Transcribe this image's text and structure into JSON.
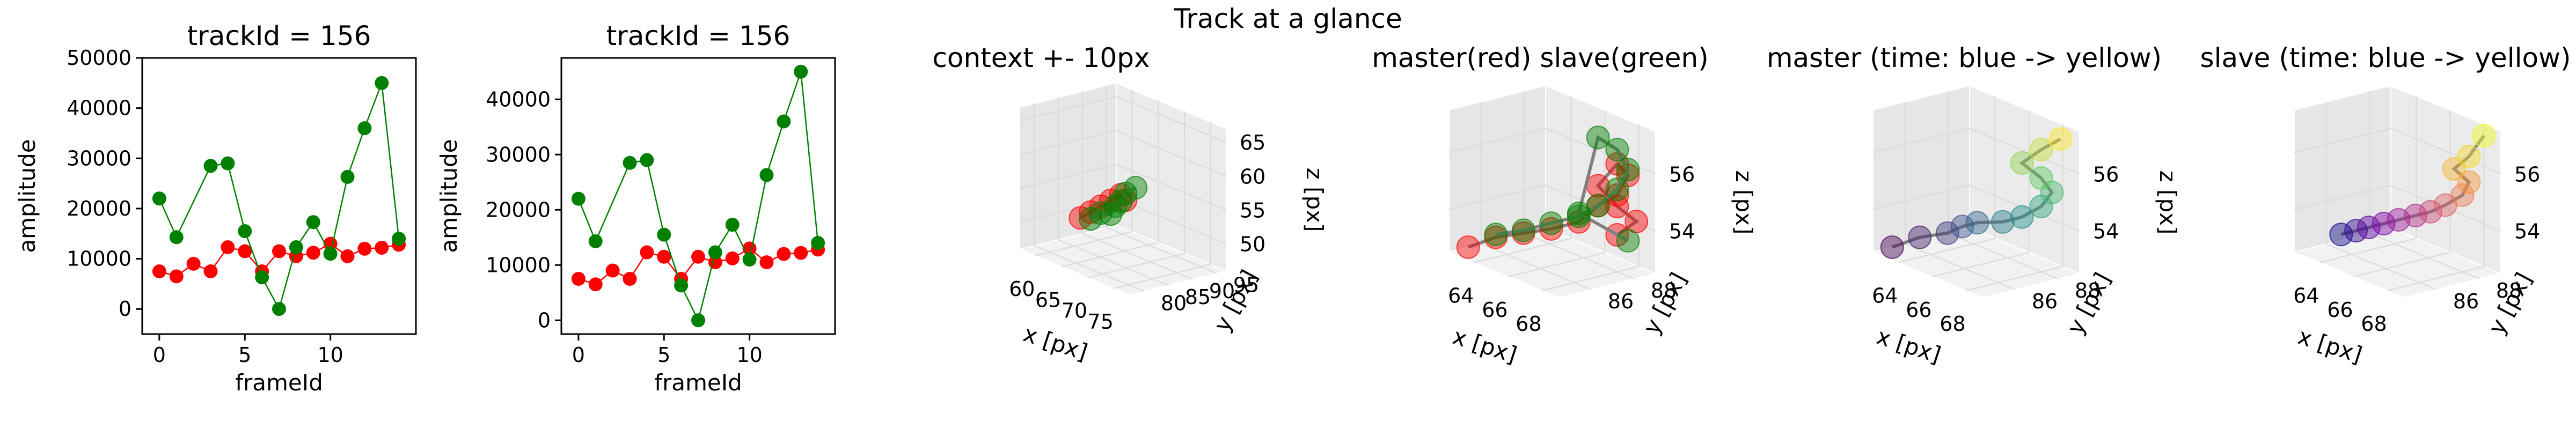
{
  "figure": {
    "suptitle": "Track at a glance"
  },
  "colors": {
    "red": "#ff0000",
    "green": "#008000",
    "gray_line": "#808080",
    "pane": "#f2f2f2",
    "grid": "#d9d9d9"
  },
  "chart_data": [
    {
      "type": "line",
      "title": "trackId = 156",
      "xlabel": "frameId",
      "ylabel": "amplitude",
      "xlim": [
        -1,
        15
      ],
      "ylim": [
        -5000,
        50000
      ],
      "xticks": [
        "0",
        "5",
        "10"
      ],
      "yticks": [
        "0",
        "10000",
        "20000",
        "30000",
        "40000",
        "50000"
      ],
      "x": [
        0,
        1,
        2,
        3,
        4,
        5,
        6,
        7,
        8,
        9,
        10,
        11,
        12,
        13,
        14
      ],
      "series": [
        {
          "color": "red",
          "values": [
            7500,
            6500,
            9000,
            7500,
            12300,
            11500,
            7500,
            11500,
            10500,
            11200,
            13000,
            10500,
            12000,
            12200,
            12800
          ]
        },
        {
          "color": "green",
          "values": [
            22000,
            14300,
            null,
            28500,
            29000,
            15500,
            6300,
            0,
            12300,
            17300,
            11000,
            26300,
            36000,
            45000,
            14000
          ]
        }
      ]
    },
    {
      "type": "line",
      "title": "trackId = 156",
      "xlabel": "frameId",
      "ylabel": "amplitude",
      "xlim": [
        -1,
        15
      ],
      "ylim": [
        -2500,
        47500
      ],
      "xticks": [
        "0",
        "5",
        "10"
      ],
      "yticks": [
        "0",
        "10000",
        "20000",
        "30000",
        "40000"
      ],
      "x": [
        0,
        1,
        2,
        3,
        4,
        5,
        6,
        7,
        8,
        9,
        10,
        11,
        12,
        13,
        14
      ],
      "series": [
        {
          "color": "red",
          "values": [
            7500,
            6500,
            9000,
            7500,
            12300,
            11500,
            7500,
            11500,
            10500,
            11200,
            13000,
            10500,
            12000,
            12200,
            12800
          ]
        },
        {
          "color": "green",
          "values": [
            22000,
            14300,
            null,
            28500,
            29000,
            15500,
            6300,
            0,
            12300,
            17300,
            11000,
            26300,
            36000,
            45000,
            14000
          ]
        }
      ]
    },
    {
      "type": "scatter",
      "title": "context +- 10px",
      "xlabel": "x [px]",
      "ylabel": "y [px]",
      "zlabel": "z [px]",
      "xticks": [
        "60",
        "65",
        "70",
        "75"
      ],
      "yticks": [
        "80",
        "85",
        "90",
        "95"
      ],
      "zticks": [
        "50",
        "55",
        "60",
        "65"
      ],
      "xlim": [
        57,
        78
      ],
      "ylim": [
        77,
        97
      ],
      "zlim": [
        46,
        67
      ],
      "red_points": {
        "x": [
          64,
          65,
          66,
          67,
          68,
          68
        ],
        "y": [
          82,
          83,
          84,
          85,
          86,
          87
        ],
        "z": [
          52,
          53,
          54,
          55,
          56,
          55
        ]
      },
      "green_points": {
        "x": [
          65,
          66,
          67,
          67,
          68,
          68,
          69
        ],
        "y": [
          83,
          84,
          85,
          86,
          86,
          87,
          88
        ],
        "z": [
          52,
          53,
          53,
          54,
          55,
          56,
          57
        ]
      }
    },
    {
      "type": "scatter",
      "title": "master(red) slave(green)",
      "xlabel": "x [px]",
      "ylabel": "y [px]",
      "zlabel": "z [px]",
      "xticks": [
        "64",
        "66",
        "68"
      ],
      "yticks": [
        "86",
        "88"
      ],
      "zticks": [
        "54",
        "56"
      ],
      "xlim": [
        62.5,
        69
      ],
      "ylim": [
        84.5,
        89
      ],
      "zlim": [
        52.5,
        57.5
      ],
      "red_points": {
        "x": [
          63,
          64,
          65,
          66,
          67,
          67.5,
          68,
          68,
          68,
          67.5,
          68,
          68.5,
          68
        ],
        "y": [
          85,
          85.5,
          86,
          86.5,
          87,
          87.5,
          88,
          88.5,
          88,
          87.5,
          88,
          88.5,
          88
        ],
        "z": [
          52.7,
          53.2,
          53.5,
          53.8,
          54.2,
          54.8,
          55.2,
          55.8,
          56.3,
          55.5,
          54.8,
          54.3,
          53.8
        ]
      },
      "green_points": {
        "x": [
          64,
          65,
          66,
          67,
          67.5,
          68,
          68,
          68,
          67.5,
          67,
          68
        ],
        "y": [
          85.5,
          86,
          86.5,
          87,
          87.5,
          88,
          88.5,
          88,
          87.5,
          87,
          88.5
        ],
        "z": [
          53.3,
          53.6,
          54,
          54.4,
          54.8,
          55.4,
          56,
          56.8,
          57.2,
          54.5,
          53.5
        ]
      }
    },
    {
      "type": "scatter",
      "title": "master (time: blue -> yellow)",
      "xlabel": "x [px]",
      "ylabel": "y [px]",
      "zlabel": "z [px]",
      "xticks": [
        "64",
        "66",
        "68"
      ],
      "yticks": [
        "86",
        "88"
      ],
      "zticks": [
        "54",
        "56"
      ],
      "xlim": [
        62.5,
        69
      ],
      "ylim": [
        84.5,
        89
      ],
      "zlim": [
        52.5,
        57.5
      ],
      "points": {
        "x": [
          63,
          64,
          65,
          65.5,
          66,
          67,
          67.5,
          68,
          68,
          68,
          67.5,
          68,
          68.5
        ],
        "y": [
          85,
          85.5,
          86,
          86.3,
          86.6,
          87,
          87.5,
          88,
          88.5,
          88,
          87.5,
          88,
          88.5
        ],
        "z": [
          52.7,
          53.2,
          53.5,
          53.8,
          54,
          54.2,
          54.4,
          54.8,
          55.2,
          55.8,
          56.3,
          56.8,
          57.2
        ]
      }
    },
    {
      "type": "scatter",
      "title": "slave (time: blue -> yellow)",
      "xlabel": "x [px]",
      "ylabel": "y [px]",
      "zlabel": "z [px]",
      "xticks": [
        "64",
        "66",
        "68"
      ],
      "yticks": [
        "86",
        "88"
      ],
      "zticks": [
        "54",
        "56"
      ],
      "xlim": [
        62.5,
        69
      ],
      "ylim": [
        84.5,
        89
      ],
      "zlim": [
        52.5,
        57.5
      ],
      "points": {
        "x": [
          64,
          64.5,
          65,
          65.5,
          66,
          66.5,
          67,
          67.5,
          68,
          68,
          67.5,
          68,
          68.5
        ],
        "y": [
          85.5,
          85.8,
          86,
          86.3,
          86.6,
          87,
          87.3,
          87.6,
          88,
          88.3,
          88,
          88.3,
          88.6
        ],
        "z": [
          53.3,
          53.5,
          53.7,
          53.9,
          54.1,
          54.3,
          54.5,
          54.8,
          55.2,
          55.6,
          56,
          56.5,
          57.3
        ]
      }
    }
  ]
}
